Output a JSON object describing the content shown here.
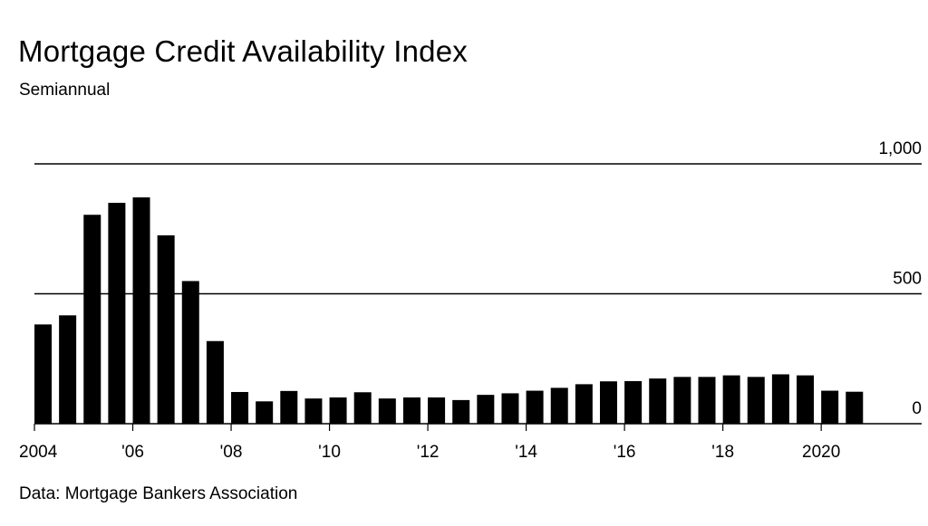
{
  "header": {
    "title": "Mortgage Credit Availability Index",
    "subtitle": "Semiannual"
  },
  "footer": {
    "source": "Data: Mortgage Bankers Association"
  },
  "chart_data": {
    "type": "bar",
    "title": "Mortgage Credit Availability Index",
    "subtitle": "Semiannual",
    "xlabel": "",
    "ylabel": "",
    "ylim": [
      0,
      1000
    ],
    "yticks": [
      {
        "value": 0,
        "label": "0"
      },
      {
        "value": 500,
        "label": "500"
      },
      {
        "value": 1000,
        "label": "1,000"
      }
    ],
    "xticks": [
      {
        "index": 0,
        "label": "2004"
      },
      {
        "index": 4,
        "label": "'06"
      },
      {
        "index": 8,
        "label": "'08"
      },
      {
        "index": 12,
        "label": "'10"
      },
      {
        "index": 16,
        "label": "'12"
      },
      {
        "index": 20,
        "label": "'14"
      },
      {
        "index": 24,
        "label": "'16"
      },
      {
        "index": 28,
        "label": "'18"
      },
      {
        "index": 32,
        "label": "2020"
      }
    ],
    "grid": true,
    "bar_color": "#000000",
    "categories": [
      "2004 H1",
      "2004 H2",
      "2005 H1",
      "2005 H2",
      "2006 H1",
      "2006 H2",
      "2007 H1",
      "2007 H2",
      "2008 H1",
      "2008 H2",
      "2009 H1",
      "2009 H2",
      "2010 H1",
      "2010 H2",
      "2011 H1",
      "2011 H2",
      "2012 H1",
      "2012 H2",
      "2013 H1",
      "2013 H2",
      "2014 H1",
      "2014 H2",
      "2015 H1",
      "2015 H2",
      "2016 H1",
      "2016 H2",
      "2017 H1",
      "2017 H2",
      "2018 H1",
      "2018 H2",
      "2019 H1",
      "2019 H2",
      "2020 H1",
      "2020 H2"
    ],
    "values": [
      382,
      417,
      804,
      850,
      871,
      725,
      549,
      318,
      122,
      86,
      126,
      97,
      101,
      121,
      97,
      101,
      101,
      91,
      111,
      117,
      127,
      138,
      152,
      163,
      164,
      174,
      180,
      180,
      186,
      180,
      190,
      186,
      127,
      123
    ]
  }
}
